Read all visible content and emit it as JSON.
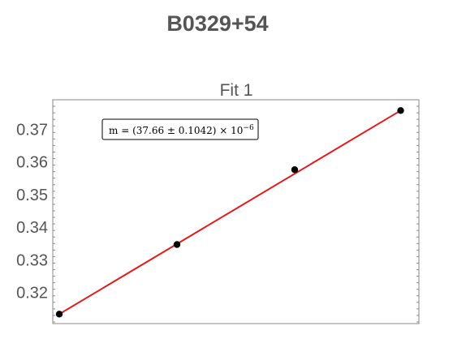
{
  "page": {
    "title": "B0329+54"
  },
  "chart_data": {
    "type": "scatter",
    "title": "Fit 1",
    "xlabel": "",
    "ylabel": "",
    "xlim": [
      0,
      3
    ],
    "ylim": [
      0.3105,
      0.379
    ],
    "yticks": [
      0.32,
      0.33,
      0.34,
      0.35,
      0.36,
      0.37
    ],
    "ytick_labels": [
      "0.32",
      "0.33",
      "0.34",
      "0.35",
      "0.36",
      "0.37"
    ],
    "grid": false,
    "colors": {
      "points": "#000000",
      "fit_line": "#e41a1c",
      "axis": "#555555"
    },
    "series": [
      {
        "values": [
          {
            "x": 0.0,
            "y": 0.3134
          },
          {
            "x": 1.0,
            "y": 0.3347
          },
          {
            "x": 2.0,
            "y": 0.3576
          },
          {
            "x": 2.9,
            "y": 0.3757
          }
        ]
      }
    ],
    "fit_line": {
      "x": [
        0.0,
        2.9
      ],
      "y": [
        0.3134,
        0.3757
      ]
    },
    "annotation": {
      "prefix": "m = (37.66 ± 0.1042) × 10",
      "exponent": "−6"
    }
  }
}
